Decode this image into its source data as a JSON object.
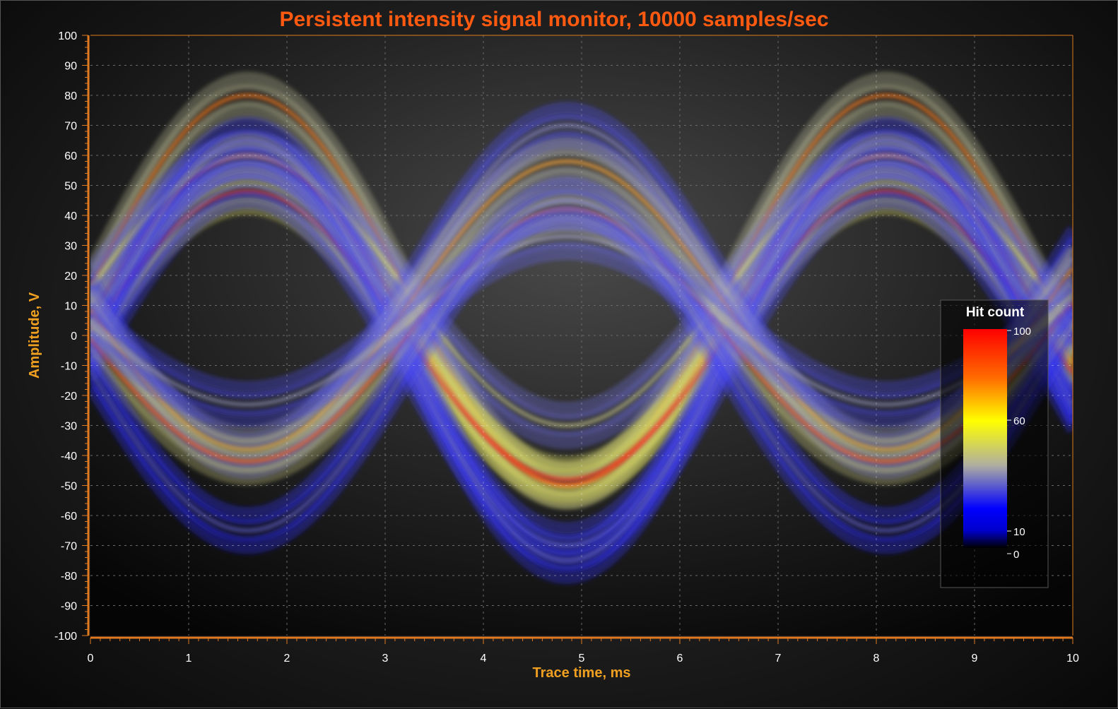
{
  "chart_data": {
    "type": "heatmap",
    "title": "Persistent intensity signal monitor, 10000 samples/sec",
    "xlabel": "Trace time, ms",
    "ylabel": "Amplitude, V",
    "xlim": [
      0,
      10
    ],
    "ylim": [
      -100,
      100
    ],
    "x_ticks": [
      0,
      1,
      2,
      3,
      4,
      5,
      6,
      7,
      8,
      9,
      10
    ],
    "y_ticks": [
      100,
      90,
      80,
      70,
      60,
      50,
      40,
      30,
      20,
      10,
      0,
      -10,
      -20,
      -30,
      -40,
      -50,
      -60,
      -70,
      -80,
      -90,
      -100
    ],
    "grid": true,
    "legend": {
      "title": "Hit count",
      "placement": "right",
      "ticks": [
        100,
        60,
        10,
        0
      ],
      "min": 0,
      "max": 100
    },
    "colors": {
      "zero": "#000000",
      "low": "#0000ff",
      "mid": "#ffff00",
      "high": "#ff0000"
    },
    "traces": [
      {
        "phase_ms": 1.6,
        "period_ms": 6.5,
        "offset_v": 15,
        "amplitude_v": 65,
        "intensity": 80
      },
      {
        "phase_ms": 1.6,
        "period_ms": 6.5,
        "offset_v": 5,
        "amplitude_v": 55,
        "intensity": 90
      },
      {
        "phase_ms": 1.6,
        "period_ms": 6.5,
        "offset_v": 0,
        "amplitude_v": 48,
        "intensity": 95
      },
      {
        "phase_ms": 1.6,
        "period_ms": 6.5,
        "offset_v": 15,
        "amplitude_v": 45,
        "intensity": 45
      },
      {
        "phase_ms": 1.6,
        "period_ms": 6.5,
        "offset_v": -10,
        "amplitude_v": 60,
        "intensity": 30
      },
      {
        "phase_ms": 1.6,
        "period_ms": 6.5,
        "offset_v": -5,
        "amplitude_v": 70,
        "intensity": 25
      },
      {
        "phase_ms": 4.85,
        "period_ms": 6.5,
        "offset_v": 15,
        "amplitude_v": 55,
        "intensity": 30
      },
      {
        "phase_ms": 4.85,
        "period_ms": 6.5,
        "offset_v": 10,
        "amplitude_v": 48,
        "intensity": 75
      },
      {
        "phase_ms": 4.85,
        "period_ms": 6.5,
        "offset_v": 0,
        "amplitude_v": 42,
        "intensity": 85
      },
      {
        "phase_ms": 4.85,
        "period_ms": 6.5,
        "offset_v": 5,
        "amplitude_v": 28,
        "intensity": 35
      },
      {
        "phase_ms": 4.85,
        "period_ms": 6.5,
        "offset_v": -10,
        "amplitude_v": 55,
        "intensity": 25
      }
    ]
  }
}
